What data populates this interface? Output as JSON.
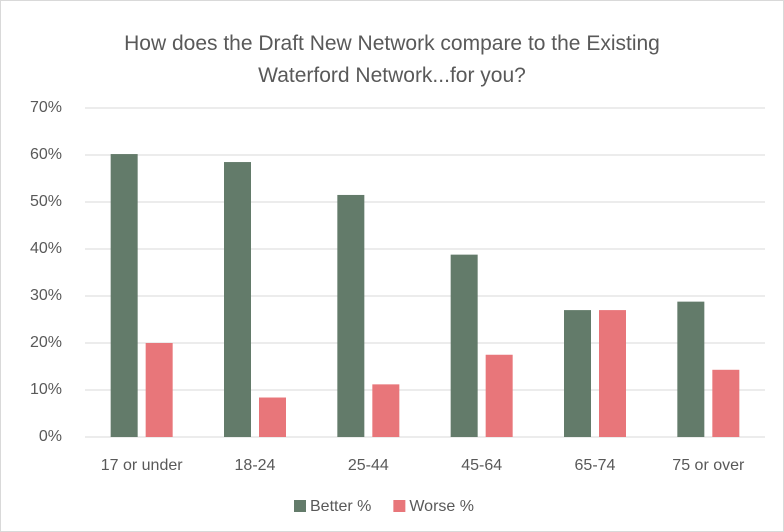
{
  "chart_data": {
    "type": "bar",
    "title": "How does the Draft New Network compare to the Existing Waterford Network...for you?",
    "categories": [
      "17 or under",
      "18-24",
      "25-44",
      "45-64",
      "65-74",
      "75 or over"
    ],
    "series": [
      {
        "name": "Better %",
        "color": "#637b6a",
        "values": [
          60.2,
          58.5,
          51.5,
          38.8,
          27,
          28.8
        ]
      },
      {
        "name": "Worse %",
        "color": "#e8767a",
        "values": [
          20,
          8.4,
          11.2,
          17.5,
          27,
          14.3
        ]
      }
    ],
    "ylim": [
      0,
      70
    ],
    "yticks": [
      {
        "value": 0,
        "label": "0%"
      },
      {
        "value": 10,
        "label": "10%"
      },
      {
        "value": 20,
        "label": "20%"
      },
      {
        "value": 30,
        "label": "30%"
      },
      {
        "value": 40,
        "label": "40%"
      },
      {
        "value": 50,
        "label": "50%"
      },
      {
        "value": 60,
        "label": "60%"
      },
      {
        "value": 70,
        "label": "70%"
      }
    ],
    "grid": true,
    "legend": "bottom"
  }
}
